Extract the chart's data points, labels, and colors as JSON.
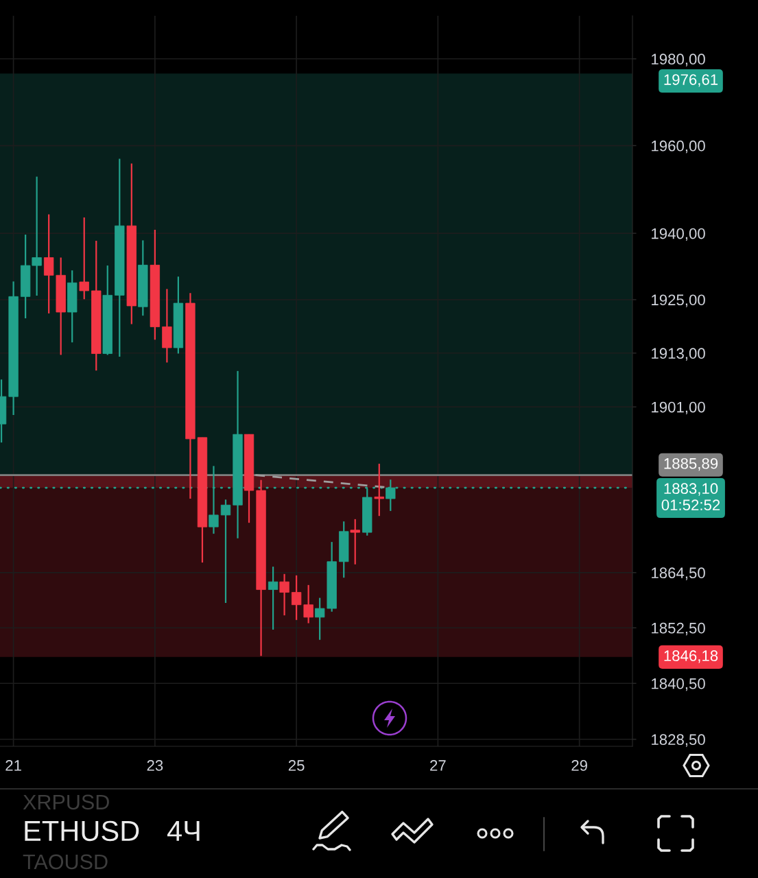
{
  "chart_data": {
    "type": "candlestick",
    "title": "ETHUSD",
    "subtitle": "4Ч",
    "annotations": [
      "XRPUSD",
      "TAOUSD"
    ],
    "x": [
      20.83,
      21.0,
      21.17,
      21.33,
      21.5,
      21.67,
      21.83,
      22.0,
      22.17,
      22.33,
      22.5,
      22.67,
      22.83,
      23.0,
      23.17,
      23.33,
      23.5,
      23.67,
      23.83,
      24.0,
      24.17,
      24.33,
      24.5,
      24.67,
      24.83,
      25.0,
      25.17,
      25.33,
      25.5,
      25.67,
      25.83,
      26.0,
      26.17,
      26.33
    ],
    "ohlc": [
      [
        1897.2,
        1907.1,
        1893.1,
        1903.3
      ],
      [
        1903.3,
        1929.1,
        1899.2,
        1925.7
      ],
      [
        1925.7,
        1939.7,
        1920.8,
        1932.7
      ],
      [
        1932.7,
        1952.9,
        1925.9,
        1934.5
      ],
      [
        1934.5,
        1944.3,
        1921.9,
        1930.5
      ],
      [
        1930.5,
        1934.5,
        1912.6,
        1922.2
      ],
      [
        1922.2,
        1931.6,
        1915.4,
        1928.8
      ],
      [
        1929.0,
        1943.6,
        1925.1,
        1927.0
      ],
      [
        1927.0,
        1938.3,
        1909.1,
        1912.9
      ],
      [
        1912.9,
        1932.7,
        1912.6,
        1926.0
      ],
      [
        1926.0,
        1957.0,
        1912.2,
        1941.7
      ],
      [
        1941.7,
        1955.9,
        1919.5,
        1923.6
      ],
      [
        1923.4,
        1938.4,
        1921.4,
        1932.8
      ],
      [
        1932.8,
        1940.8,
        1916.0,
        1918.9
      ],
      [
        1918.9,
        1927.4,
        1910.9,
        1914.2
      ],
      [
        1914.2,
        1930.2,
        1912.9,
        1924.2
      ],
      [
        1924.2,
        1926.5,
        1880.7,
        1893.9
      ],
      [
        1894.2,
        1894.2,
        1866.7,
        1874.5
      ],
      [
        1874.5,
        1887.9,
        1873.0,
        1877.1
      ],
      [
        1877.1,
        1880.5,
        1857.9,
        1879.3
      ],
      [
        1879.3,
        1909.0,
        1872.0,
        1894.9
      ],
      [
        1894.9,
        1894.9,
        1875.4,
        1882.5
      ],
      [
        1882.5,
        1884.8,
        1846.4,
        1860.8
      ],
      [
        1860.8,
        1865.8,
        1852.1,
        1862.5
      ],
      [
        1862.5,
        1864.2,
        1855.2,
        1860.2
      ],
      [
        1860.2,
        1863.9,
        1854.2,
        1857.5
      ],
      [
        1857.5,
        1861.8,
        1853.5,
        1854.8
      ],
      [
        1854.8,
        1859.0,
        1849.9,
        1856.7
      ],
      [
        1856.7,
        1871.2,
        1856.0,
        1866.9
      ],
      [
        1866.9,
        1875.7,
        1863.4,
        1873.5
      ],
      [
        1873.8,
        1876.2,
        1866.3,
        1873.3
      ],
      [
        1873.3,
        1883.0,
        1872.6,
        1881.0
      ],
      [
        1881.1,
        1888.4,
        1876.9,
        1880.7
      ],
      [
        1880.7,
        1884.9,
        1878.0,
        1883.1
      ]
    ],
    "colors": [
      "#22a28c",
      "#22a28c",
      "#22a28c",
      "#22a28c",
      "#f23645",
      "#f23645",
      "#22a28c",
      "#f23645",
      "#f23645",
      "#22a28c",
      "#22a28c",
      "#f23645",
      "#22a28c",
      "#f23645",
      "#f23645",
      "#22a28c",
      "#f23645",
      "#f23645",
      "#22a28c",
      "#22a28c",
      "#22a28c",
      "#f23645",
      "#f23645",
      "#22a28c",
      "#f23645",
      "#f23645",
      "#f23645",
      "#22a28c",
      "#22a28c",
      "#22a28c",
      "#f23645",
      "#22a28c",
      "#f23645",
      "#22a28c"
    ],
    "series": [
      {
        "type": "line",
        "x": [
          24.42,
          26.33
        ],
        "values": [
          1885.9,
          1883.1
        ],
        "color": "#9e9e9e",
        "line_style": "dashed"
      }
    ],
    "xlim": [
      20.81,
      29.75
    ],
    "xticks": [
      21,
      23,
      25,
      27,
      29
    ],
    "ylim": [
      1827,
      1990
    ],
    "yticks": [
      {
        "value": 1828.5,
        "label": "1828,50"
      },
      {
        "value": 1840.5,
        "label": "1840,50"
      },
      {
        "value": 1852.5,
        "label": "1852,50"
      },
      {
        "value": 1864.5,
        "label": "1864,50"
      },
      {
        "value": 1901,
        "label": "1901,00"
      },
      {
        "value": 1913,
        "label": "1913,00"
      },
      {
        "value": 1925,
        "label": "1925,00"
      },
      {
        "value": 1940,
        "label": "1940,00"
      },
      {
        "value": 1960,
        "label": "1960,00"
      },
      {
        "value": 1980,
        "label": "1980,00"
      }
    ],
    "log": "y",
    "grid": true,
    "bands": [
      {
        "axis": "y",
        "from": 1885.89,
        "to": 1976.61,
        "label": "1976,61",
        "color": "#22a28c"
      },
      {
        "axis": "y",
        "from": 1885.89,
        "to": 1846.18,
        "label": "1846,18",
        "color": "#f23645"
      },
      {
        "axis": "y",
        "from": 1885.89,
        "to": 1883.1,
        "color": "#f23645"
      }
    ],
    "ref_lines": [
      {
        "axis": "y",
        "value": 1885.89,
        "label": "1885,89",
        "color": "#808080",
        "line_style": "solid"
      },
      {
        "axis": "y",
        "value": 1883.1,
        "label": "1883,10\n01:52:52",
        "color": "#22a28c",
        "line_style": "dotted"
      }
    ]
  }
}
